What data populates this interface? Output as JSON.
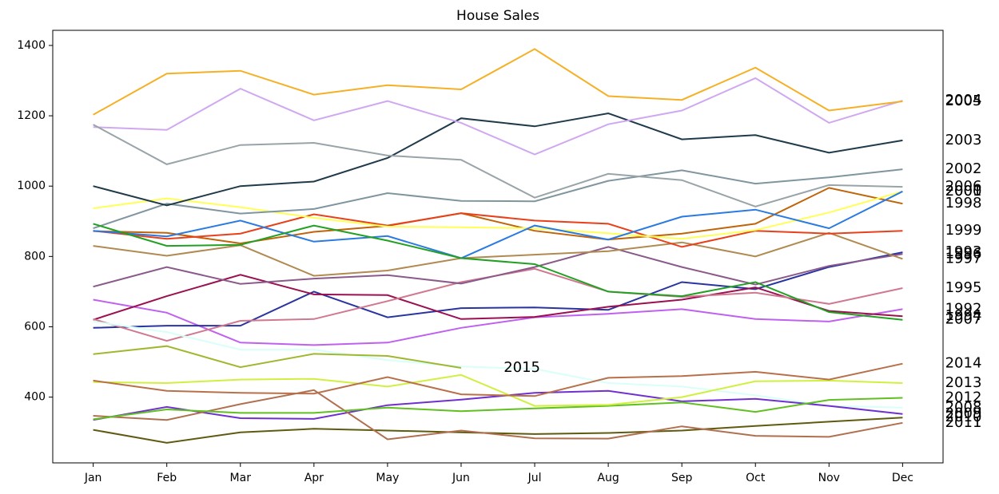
{
  "chart_data": {
    "type": "line",
    "title": "House Sales",
    "categories": [
      "Jan",
      "Feb",
      "Mar",
      "Apr",
      "May",
      "Jun",
      "Jul",
      "Aug",
      "Sep",
      "Oct",
      "Nov",
      "Dec"
    ],
    "ylim": [
      213,
      1443
    ],
    "yticks": [
      400,
      600,
      800,
      1000,
      1200,
      1400
    ],
    "grid": false,
    "series": [
      {
        "name": "1992",
        "color": "#c060f0",
        "values": [
          677,
          640,
          555,
          548,
          555,
          597,
          627,
          637,
          650,
          622,
          615,
          650
        ]
      },
      {
        "name": "1993",
        "color": "#2a34a0",
        "values": [
          597,
          603,
          603,
          700,
          627,
          653,
          655,
          648,
          727,
          707,
          770,
          812
        ]
      },
      {
        "name": "1994",
        "color": "#9a1050",
        "values": [
          620,
          687,
          748,
          692,
          690,
          622,
          628,
          657,
          677,
          712,
          645,
          630
        ]
      },
      {
        "name": "1995",
        "color": "#d07890",
        "values": [
          622,
          560,
          617,
          622,
          673,
          727,
          765,
          700,
          685,
          697,
          665,
          710
        ]
      },
      {
        "name": "1996",
        "color": "#8a5a8a",
        "values": [
          714,
          770,
          722,
          737,
          747,
          723,
          770,
          827,
          770,
          720,
          773,
          807
        ]
      },
      {
        "name": "1997",
        "color": "#b08a50",
        "values": [
          830,
          802,
          832,
          745,
          760,
          795,
          805,
          815,
          840,
          800,
          867,
          793
        ]
      },
      {
        "name": "1998",
        "color": "#c0640a",
        "values": [
          872,
          867,
          837,
          870,
          887,
          923,
          873,
          848,
          865,
          893,
          995,
          950
        ]
      },
      {
        "name": "1999",
        "color": "#e8401a",
        "values": [
          873,
          850,
          865,
          920,
          888,
          923,
          902,
          893,
          827,
          873,
          865,
          873
        ]
      },
      {
        "name": "2000",
        "color": "#ffff55",
        "values": [
          937,
          965,
          940,
          910,
          885,
          883,
          880,
          866,
          850,
          875,
          925,
          985
        ]
      },
      {
        "name": "2001",
        "color": "#2a7ae2",
        "values": [
          873,
          857,
          902,
          842,
          858,
          795,
          888,
          848,
          913,
          933,
          880,
          985
        ]
      },
      {
        "name": "2002",
        "color": "#7f959f",
        "values": [
          880,
          950,
          922,
          935,
          980,
          958,
          957,
          1015,
          1045,
          1007,
          1025,
          1048
        ]
      },
      {
        "name": "2003",
        "color": "#1f3a4a",
        "values": [
          1000,
          945,
          1000,
          1013,
          1080,
          1193,
          1170,
          1207,
          1133,
          1145,
          1095,
          1130
        ]
      },
      {
        "name": "2004",
        "color": "#d0a8f0",
        "values": [
          1168,
          1160,
          1277,
          1187,
          1242,
          1180,
          1090,
          1176,
          1215,
          1307,
          1180,
          1243
        ]
      },
      {
        "name": "2005",
        "color": "#f5b025",
        "values": [
          1203,
          1320,
          1328,
          1260,
          1287,
          1275,
          1390,
          1256,
          1245,
          1337,
          1215,
          1241
        ]
      },
      {
        "name": "2006",
        "color": "#98a4a8",
        "values": [
          1175,
          1062,
          1117,
          1123,
          1087,
          1075,
          967,
          1035,
          1017,
          942,
          1003,
          998
        ]
      },
      {
        "name": "2007",
        "color": "#22a022",
        "values": [
          893,
          830,
          833,
          888,
          845,
          795,
          778,
          700,
          687,
          727,
          642,
          620
        ]
      },
      {
        "name": "2008",
        "color": "#d8fff8",
        "values": [
          615,
          585,
          535,
          535,
          505,
          487,
          480,
          440,
          430,
          405,
          375,
          370
        ]
      },
      {
        "name": "2009",
        "color": "#7030d0",
        "values": [
          335,
          372,
          340,
          338,
          377,
          393,
          412,
          418,
          388,
          395,
          375,
          352
        ]
      },
      {
        "name": "2010",
        "color": "#605a10",
        "values": [
          307,
          270,
          300,
          310,
          305,
          300,
          295,
          298,
          305,
          318,
          330,
          342
        ]
      },
      {
        "name": "2011",
        "color": "#b07050",
        "values": [
          347,
          335,
          380,
          420,
          280,
          305,
          283,
          282,
          317,
          290,
          287,
          327
        ]
      },
      {
        "name": "2012",
        "color": "#60c020",
        "values": [
          337,
          365,
          355,
          355,
          370,
          360,
          368,
          375,
          385,
          358,
          392,
          398
        ]
      },
      {
        "name": "2013",
        "color": "#d0f040",
        "values": [
          443,
          440,
          450,
          452,
          430,
          463,
          375,
          378,
          400,
          445,
          447,
          440
        ]
      },
      {
        "name": "2014",
        "color": "#b8704a",
        "values": [
          447,
          418,
          412,
          410,
          457,
          408,
          403,
          455,
          460,
          472,
          450,
          495
        ]
      },
      {
        "name": "2015",
        "color": "#a0b830",
        "values": [
          522,
          545,
          485,
          523,
          517,
          483,
          null,
          null,
          null,
          null,
          null,
          null
        ]
      }
    ]
  }
}
